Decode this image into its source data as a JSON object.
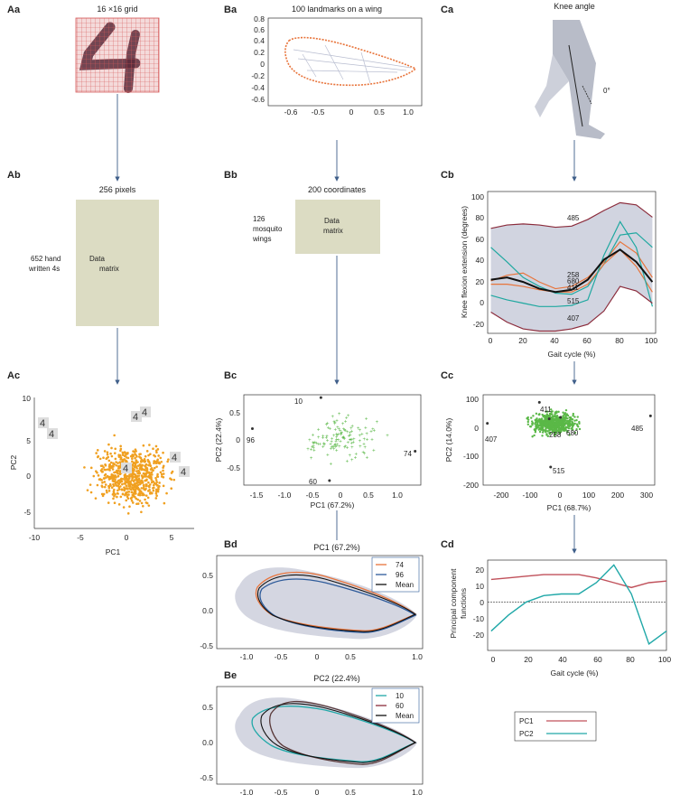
{
  "colors": {
    "orange_points": "#f0a020",
    "green_points": "#5ab847",
    "arrow": "#3f5f8a",
    "matrix_fill": "#dcdcc3",
    "wing_gray": "#b8bdd0",
    "orange_line": "#e8743b",
    "blue_line": "#2e5b9a",
    "teal_line": "#1fa8a0",
    "maroon_line": "#8b2c3c",
    "pc1_line": "#c0505a",
    "pc2_line": "#20a8a8",
    "knee_gray": "#b8bcc8"
  },
  "panels": {
    "Aa": {
      "label": "Aa",
      "title": "16 ×16 grid"
    },
    "Ab": {
      "label": "Ab",
      "title": "256 pixels",
      "row_label_1": "652 hand",
      "row_label_2": "written 4s",
      "matrix_1": "Data",
      "matrix_2": "matrix"
    },
    "Ac": {
      "label": "Ac",
      "xlabel": "PC1",
      "ylabel": "PC2",
      "xticks": [
        "-10",
        "-5",
        "0",
        "5"
      ],
      "yticks": [
        "10",
        "5",
        "0",
        "-5"
      ]
    },
    "Ba": {
      "label": "Ba",
      "title": "100 landmarks on a wing",
      "xticks": [
        "-0.6",
        "-0.5",
        "0",
        "0.5",
        "1.0"
      ],
      "yticks": [
        "0.8",
        "0.6",
        "0.4",
        "0.2",
        "0",
        "-0.2",
        "-0.4",
        "-0.6"
      ]
    },
    "Bb": {
      "label": "Bb",
      "title": "200 coordinates",
      "row_label_1": "126",
      "row_label_2": "mosquito",
      "row_label_3": "wings",
      "matrix_1": "Data",
      "matrix_2": "matrix"
    },
    "Bc": {
      "label": "Bc",
      "xlabel": "PC1 (67.2%)",
      "ylabel": "PC2 (22.4%)",
      "xticks": [
        "-1.5",
        "-1.0",
        "-0.5",
        "0",
        "0.5",
        "1.0"
      ],
      "yticks": [
        "0.5",
        "0",
        "-0.5"
      ],
      "annotations": [
        "10",
        "96",
        "74",
        "60"
      ]
    },
    "Bd": {
      "label": "Bd",
      "title": "PC1 (67.2%)",
      "legend": [
        "74",
        "96",
        "Mean"
      ],
      "xticks": [
        "-1.0",
        "-0.5",
        "0",
        "0.5",
        "1.0"
      ],
      "yticks": [
        "0.5",
        "0.0",
        "-0.5"
      ]
    },
    "Be": {
      "label": "Be",
      "title": "PC2 (22.4%)",
      "legend": [
        "10",
        "60",
        "Mean"
      ],
      "xticks": [
        "-1.0",
        "-0.5",
        "0",
        "0.5",
        "1.0"
      ],
      "yticks": [
        "0.5",
        "0.0",
        "-0.5"
      ]
    },
    "Ca": {
      "label": "Ca",
      "title": "Knee angle",
      "angle": "0°"
    },
    "Cb": {
      "label": "Cb",
      "xlabel": "Gait cycle (%)",
      "ylabel": "Knee flexion extension (degrees)",
      "xticks": [
        "0",
        "20",
        "40",
        "60",
        "80",
        "100"
      ],
      "yticks": [
        "100",
        "80",
        "60",
        "40",
        "20",
        "0",
        "-20"
      ],
      "annotations": [
        "485",
        "258",
        "680",
        "411",
        "515",
        "407"
      ]
    },
    "Cc": {
      "label": "Cc",
      "xlabel": "PC1 (68.7%)",
      "ylabel": "PC2 (14.0%)",
      "xticks": [
        "-200",
        "-100",
        "0",
        "100",
        "200",
        "300"
      ],
      "yticks": [
        "100",
        "0",
        "-100",
        "-200"
      ],
      "annotations": [
        "411",
        "407",
        "258",
        "680",
        "485",
        "515"
      ]
    },
    "Cd": {
      "label": "Cd",
      "xlabel": "Gait cycle (%)",
      "ylabel_1": "Principal component",
      "ylabel_2": "functions",
      "xticks": [
        "0",
        "20",
        "40",
        "60",
        "80",
        "100"
      ],
      "yticks": [
        "20",
        "10",
        "0",
        "-10",
        "-20"
      ],
      "legend": [
        "PC1",
        "PC2"
      ]
    }
  },
  "chart_data": [
    {
      "type": "scatter",
      "panel": "Ac",
      "xlabel": "PC1",
      "ylabel": "PC2",
      "xlim": [
        -10,
        7
      ],
      "ylim": [
        -6,
        10
      ],
      "point_count": 652
    },
    {
      "type": "line",
      "panel": "Ba",
      "title": "100 landmarks on a wing",
      "xlim": [
        -0.75,
        1.15
      ],
      "ylim": [
        -0.6,
        0.8
      ]
    },
    {
      "type": "scatter",
      "panel": "Bc",
      "xlabel": "PC1 (67.2%)",
      "ylabel": "PC2 (22.4%)",
      "xlim": [
        -1.7,
        1.4
      ],
      "ylim": [
        -0.8,
        0.8
      ],
      "point_count": 126,
      "labeled_points": [
        {
          "label": "10",
          "x": -0.35,
          "y": 0.75
        },
        {
          "label": "96",
          "x": -1.55,
          "y": 0.2
        },
        {
          "label": "74",
          "x": 1.3,
          "y": -0.2
        },
        {
          "label": "60",
          "x": -0.2,
          "y": -0.72
        }
      ]
    },
    {
      "type": "line",
      "panel": "Bd",
      "title": "PC1 (67.2%)",
      "series": [
        {
          "name": "74"
        },
        {
          "name": "96"
        },
        {
          "name": "Mean"
        }
      ],
      "xlim": [
        -1.4,
        1.05
      ],
      "ylim": [
        -0.55,
        0.7
      ]
    },
    {
      "type": "line",
      "panel": "Be",
      "title": "PC2 (22.4%)",
      "series": [
        {
          "name": "10"
        },
        {
          "name": "60"
        },
        {
          "name": "Mean"
        }
      ],
      "xlim": [
        -1.4,
        1.05
      ],
      "ylim": [
        -0.55,
        0.7
      ]
    },
    {
      "type": "line",
      "panel": "Cb",
      "xlabel": "Gait cycle (%)",
      "ylabel": "Knee flexion extension (degrees)",
      "xlim": [
        -2,
        102
      ],
      "ylim": [
        -22,
        105
      ],
      "x": [
        0,
        10,
        20,
        30,
        40,
        50,
        60,
        70,
        80,
        90,
        100
      ],
      "series": [
        {
          "name": "485",
          "values": [
            72,
            75,
            76,
            75,
            73,
            74,
            80,
            88,
            95,
            93,
            82
          ]
        },
        {
          "name": "258",
          "values": [
            25,
            30,
            32,
            24,
            18,
            20,
            28,
            42,
            60,
            50,
            28
          ]
        },
        {
          "name": "680",
          "values": [
            55,
            42,
            28,
            20,
            14,
            13,
            20,
            40,
            66,
            68,
            55
          ]
        },
        {
          "name": "411",
          "values": [
            22,
            22,
            20,
            17,
            15,
            15,
            22,
            40,
            53,
            38,
            15
          ]
        },
        {
          "name": "515",
          "values": [
            12,
            8,
            5,
            2,
            2,
            3,
            8,
            48,
            78,
            55,
            2
          ]
        },
        {
          "name": "407",
          "values": [
            -3,
            -12,
            -18,
            -20,
            -20,
            -18,
            -14,
            -2,
            20,
            16,
            5
          ]
        },
        {
          "name": "Mean",
          "values": [
            26,
            28,
            24,
            18,
            15,
            17,
            26,
            44,
            53,
            42,
            24
          ]
        }
      ]
    },
    {
      "type": "scatter",
      "panel": "Cc",
      "xlabel": "PC1 (68.7%)",
      "ylabel": "PC2 (14.0%)",
      "xlim": [
        -250,
        360
      ],
      "ylim": [
        -200,
        100
      ],
      "point_count": 680,
      "labeled_points": [
        {
          "label": "411",
          "x": -50,
          "y": 75
        },
        {
          "label": "407",
          "x": -235,
          "y": 5
        },
        {
          "label": "258",
          "x": -15,
          "y": 20
        },
        {
          "label": "680",
          "x": 25,
          "y": 25
        },
        {
          "label": "485",
          "x": 345,
          "y": 30
        },
        {
          "label": "515",
          "x": -10,
          "y": -140
        }
      ]
    },
    {
      "type": "line",
      "panel": "Cd",
      "xlabel": "Gait cycle (%)",
      "ylabel": "Principal component functions",
      "xlim": [
        -2,
        100
      ],
      "ylim": [
        -30,
        26
      ],
      "x": [
        0,
        10,
        20,
        30,
        40,
        50,
        60,
        70,
        80,
        90,
        100
      ],
      "series": [
        {
          "name": "PC1",
          "values": [
            14,
            15,
            16,
            17,
            17,
            17,
            15,
            12,
            9,
            12,
            13
          ]
        },
        {
          "name": "PC2",
          "values": [
            -18,
            -8,
            0,
            4,
            5,
            5,
            12,
            23,
            5,
            -26,
            -18
          ]
        }
      ]
    }
  ]
}
